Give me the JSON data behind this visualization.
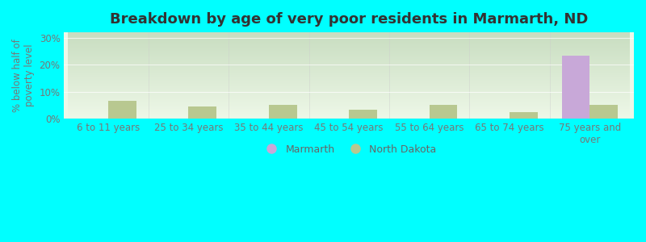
{
  "title": "Breakdown by age of very poor residents in Marmarth, ND",
  "ylabel": "% below half of\npoverty level",
  "categories": [
    "6 to 11 years",
    "25 to 34 years",
    "35 to 44 years",
    "45 to 54 years",
    "55 to 64 years",
    "65 to 74 years",
    "75 years and\nover"
  ],
  "marmarth_values": [
    0,
    0,
    0,
    0,
    0,
    0,
    23.5
  ],
  "nd_values": [
    6.5,
    4.5,
    5.2,
    3.2,
    5.0,
    2.5,
    5.0
  ],
  "marmarth_color": "#c8a8d8",
  "nd_color": "#b8c890",
  "ylim": [
    0,
    32
  ],
  "yticks": [
    0,
    10,
    20,
    30
  ],
  "ytick_labels": [
    "0%",
    "10%",
    "20%",
    "30%"
  ],
  "bg_top": "#c8ddc0",
  "bg_bottom": "#eef8e8",
  "outer_bg": "#00ffff",
  "title_fontsize": 13,
  "axis_label_fontsize": 8.5,
  "tick_fontsize": 8.5,
  "legend_fontsize": 9,
  "bar_width": 0.35
}
